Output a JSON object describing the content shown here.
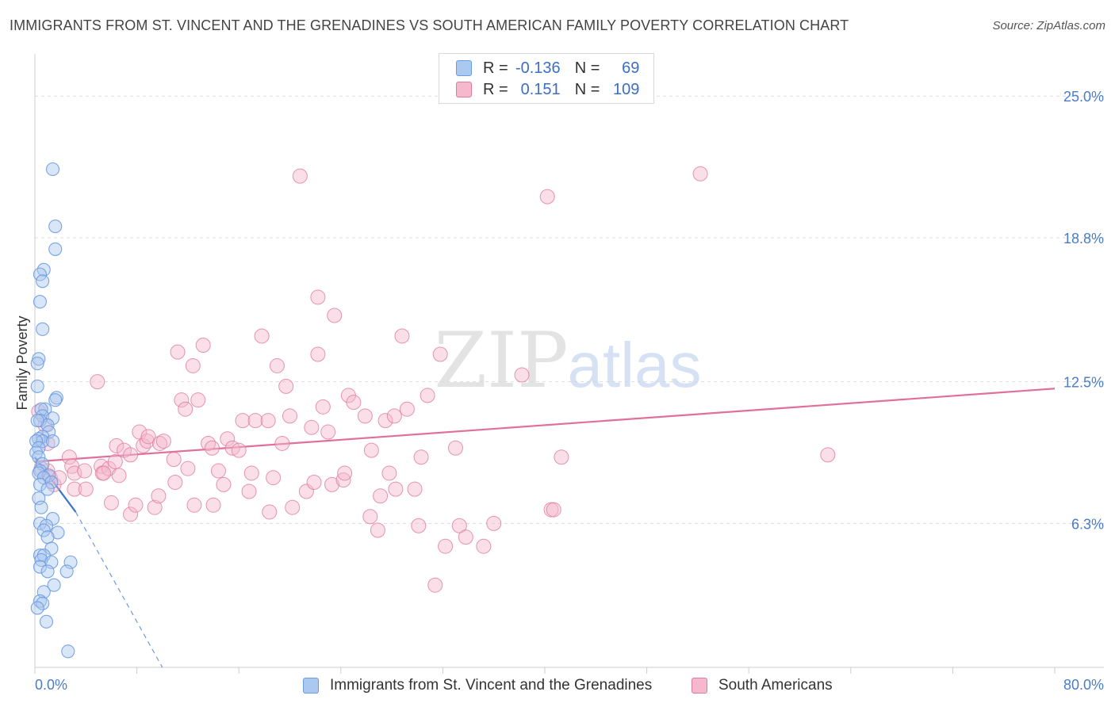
{
  "title": "IMMIGRANTS FROM ST. VINCENT AND THE GRENADINES VS SOUTH AMERICAN FAMILY POVERTY CORRELATION CHART",
  "source": "Source: ZipAtlas.com",
  "watermark": {
    "zip": "ZIP",
    "atlas": "atlas"
  },
  "legend": {
    "rows": [
      {
        "r_label": "R =",
        "r_value": "-0.136",
        "n_label": "N =",
        "n_value": "69"
      },
      {
        "r_label": "R =",
        "r_value": "0.151",
        "n_label": "N =",
        "n_value": "109"
      }
    ]
  },
  "chart_data": {
    "type": "scatter",
    "ylabel": "Family Poverty",
    "xlim": [
      0,
      80
    ],
    "ylim": [
      0,
      26.5
    ],
    "x_tick_labels": [
      "0.0%",
      "80.0%"
    ],
    "y_ticks": [
      6.3,
      12.5,
      18.8,
      25.0
    ],
    "y_tick_labels": [
      "6.3%",
      "12.5%",
      "18.8%",
      "25.0%"
    ],
    "grid": "horizontal dashed",
    "legend_position": "top-center",
    "series": [
      {
        "name": "Immigrants from St. Vincent and the Grenadines",
        "color": "#6b9be0",
        "fill": "#aac8f0",
        "trend": {
          "x0": 0,
          "y0": 9.2,
          "x1": 3.2,
          "y1": 6.8,
          "dashed_to_x": 10,
          "dashed_to_y": 0
        },
        "points": [
          [
            1.4,
            21.8
          ],
          [
            1.6,
            19.3
          ],
          [
            1.6,
            18.3
          ],
          [
            0.7,
            17.4
          ],
          [
            0.4,
            17.2
          ],
          [
            0.6,
            16.9
          ],
          [
            0.4,
            16.0
          ],
          [
            0.6,
            14.8
          ],
          [
            0.3,
            13.5
          ],
          [
            0.2,
            13.3
          ],
          [
            0.2,
            12.3
          ],
          [
            1.7,
            11.8
          ],
          [
            1.6,
            11.7
          ],
          [
            0.8,
            11.3
          ],
          [
            0.5,
            11.3
          ],
          [
            0.6,
            11.0
          ],
          [
            1.4,
            10.9
          ],
          [
            0.4,
            10.8
          ],
          [
            1.0,
            10.6
          ],
          [
            0.2,
            10.8
          ],
          [
            1.1,
            10.3
          ],
          [
            0.6,
            10.1
          ],
          [
            0.3,
            10.0
          ],
          [
            0.6,
            9.9
          ],
          [
            0.1,
            9.9
          ],
          [
            1.4,
            9.9
          ],
          [
            0.3,
            9.6
          ],
          [
            0.1,
            9.4
          ],
          [
            0.3,
            9.2
          ],
          [
            0.6,
            8.9
          ],
          [
            0.4,
            8.6
          ],
          [
            0.3,
            8.5
          ],
          [
            1.1,
            8.4
          ],
          [
            0.7,
            8.3
          ],
          [
            1.3,
            8.1
          ],
          [
            0.4,
            8.0
          ],
          [
            1.0,
            7.8
          ],
          [
            0.3,
            7.4
          ],
          [
            0.5,
            7.0
          ],
          [
            1.4,
            6.5
          ],
          [
            0.4,
            6.3
          ],
          [
            0.9,
            6.2
          ],
          [
            0.7,
            6.0
          ],
          [
            1.8,
            5.9
          ],
          [
            1.0,
            5.7
          ],
          [
            1.3,
            5.2
          ],
          [
            0.4,
            4.9
          ],
          [
            0.7,
            4.9
          ],
          [
            0.5,
            4.7
          ],
          [
            2.8,
            4.6
          ],
          [
            1.3,
            4.6
          ],
          [
            0.4,
            4.4
          ],
          [
            1.0,
            4.2
          ],
          [
            2.5,
            4.2
          ],
          [
            1.5,
            3.6
          ],
          [
            0.7,
            3.3
          ],
          [
            0.4,
            2.9
          ],
          [
            0.6,
            2.8
          ],
          [
            0.2,
            2.6
          ],
          [
            0.9,
            2.0
          ],
          [
            2.6,
            0.7
          ]
        ]
      },
      {
        "name": "South Americans",
        "color": "#e07aa0",
        "fill": "#f5b8cc",
        "trend": {
          "x0": 0,
          "y0": 9.0,
          "x1": 80,
          "y1": 12.2
        },
        "points": [
          [
            0.3,
            11.2
          ],
          [
            0.8,
            10.6
          ],
          [
            1.0,
            9.8
          ],
          [
            1.0,
            8.6
          ],
          [
            0.5,
            8.7
          ],
          [
            1.2,
            8.3
          ],
          [
            1.5,
            8.0
          ],
          [
            1.9,
            8.3
          ],
          [
            2.7,
            9.2
          ],
          [
            2.9,
            8.8
          ],
          [
            3.1,
            8.5
          ],
          [
            3.1,
            7.8
          ],
          [
            3.9,
            8.6
          ],
          [
            4.0,
            7.8
          ],
          [
            4.9,
            12.5
          ],
          [
            5.2,
            8.8
          ],
          [
            5.3,
            8.5
          ],
          [
            5.8,
            8.7
          ],
          [
            5.4,
            8.5
          ],
          [
            6.0,
            7.2
          ],
          [
            6.3,
            9.0
          ],
          [
            6.4,
            9.7
          ],
          [
            6.6,
            8.4
          ],
          [
            7.0,
            9.5
          ],
          [
            7.5,
            6.7
          ],
          [
            7.5,
            9.3
          ],
          [
            7.9,
            7.1
          ],
          [
            8.2,
            10.3
          ],
          [
            8.5,
            9.7
          ],
          [
            8.8,
            9.9
          ],
          [
            8.9,
            10.1
          ],
          [
            9.4,
            7.0
          ],
          [
            9.7,
            7.5
          ],
          [
            9.8,
            9.8
          ],
          [
            10.1,
            9.9
          ],
          [
            10.9,
            9.1
          ],
          [
            11.0,
            8.1
          ],
          [
            11.2,
            13.8
          ],
          [
            11.5,
            11.7
          ],
          [
            11.8,
            11.3
          ],
          [
            12.0,
            8.7
          ],
          [
            12.4,
            13.2
          ],
          [
            12.5,
            7.1
          ],
          [
            12.8,
            11.7
          ],
          [
            13.2,
            14.1
          ],
          [
            13.6,
            9.8
          ],
          [
            13.9,
            9.6
          ],
          [
            14.0,
            7.1
          ],
          [
            14.4,
            8.6
          ],
          [
            14.8,
            8.0
          ],
          [
            15.1,
            10.0
          ],
          [
            15.5,
            9.6
          ],
          [
            16.0,
            9.5
          ],
          [
            16.3,
            10.8
          ],
          [
            16.8,
            7.7
          ],
          [
            17.0,
            8.5
          ],
          [
            17.3,
            10.8
          ],
          [
            17.8,
            14.5
          ],
          [
            18.3,
            10.8
          ],
          [
            18.4,
            6.8
          ],
          [
            18.7,
            8.3
          ],
          [
            19.0,
            13.2
          ],
          [
            19.4,
            9.8
          ],
          [
            19.7,
            12.3
          ],
          [
            20.0,
            11.0
          ],
          [
            20.2,
            7.0
          ],
          [
            20.8,
            21.5
          ],
          [
            21.3,
            7.7
          ],
          [
            21.7,
            10.5
          ],
          [
            21.9,
            8.1
          ],
          [
            22.2,
            16.2
          ],
          [
            22.2,
            13.7
          ],
          [
            22.6,
            11.4
          ],
          [
            23.0,
            10.3
          ],
          [
            23.3,
            8.0
          ],
          [
            23.5,
            15.4
          ],
          [
            24.2,
            8.2
          ],
          [
            24.3,
            8.5
          ],
          [
            24.6,
            11.9
          ],
          [
            25.0,
            11.6
          ],
          [
            25.9,
            11.0
          ],
          [
            26.3,
            6.6
          ],
          [
            26.4,
            9.5
          ],
          [
            26.9,
            6.0
          ],
          [
            27.1,
            7.5
          ],
          [
            27.5,
            10.8
          ],
          [
            27.8,
            8.5
          ],
          [
            28.2,
            11.0
          ],
          [
            28.3,
            7.8
          ],
          [
            28.8,
            14.5
          ],
          [
            29.2,
            11.3
          ],
          [
            29.8,
            7.8
          ],
          [
            30.1,
            6.2
          ],
          [
            30.3,
            9.2
          ],
          [
            30.8,
            11.9
          ],
          [
            31.4,
            3.6
          ],
          [
            31.8,
            13.7
          ],
          [
            32.2,
            5.3
          ],
          [
            33.0,
            9.6
          ],
          [
            33.3,
            6.2
          ],
          [
            33.8,
            5.7
          ],
          [
            35.2,
            5.3
          ],
          [
            36.0,
            6.3
          ],
          [
            38.2,
            12.8
          ],
          [
            40.2,
            20.6
          ],
          [
            40.5,
            6.9
          ],
          [
            40.7,
            6.9
          ],
          [
            41.3,
            9.2
          ],
          [
            52.2,
            21.6
          ],
          [
            62.2,
            9.3
          ]
        ]
      }
    ]
  }
}
